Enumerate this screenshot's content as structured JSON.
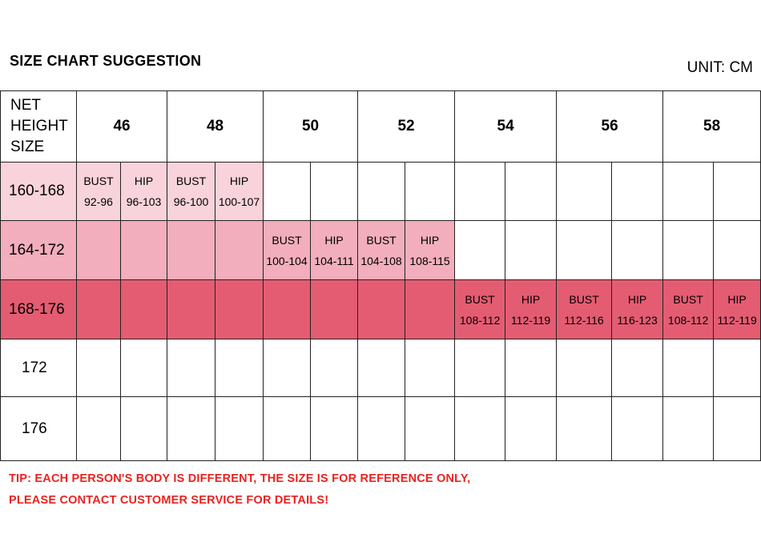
{
  "title": "SIZE CHART SUGGESTION",
  "unit": "UNIT: CM",
  "header": {
    "label_lines": [
      "NET",
      "HEIGHT",
      "SIZE"
    ],
    "sizes": [
      "46",
      "48",
      "50",
      "52",
      "54",
      "56",
      "58"
    ]
  },
  "colors": {
    "row1": "#f8d3db",
    "row2": "#f2aebc",
    "row3": "#e45c72",
    "tip": "#e8231f"
  },
  "rows": [
    {
      "label": "160-168",
      "cells": [
        {
          "k": "BUST",
          "v": "92-96"
        },
        {
          "k": "HIP",
          "v": "96-103"
        },
        {
          "k": "BUST",
          "v": "96-100"
        },
        {
          "k": "HIP",
          "v": "100-107"
        },
        {},
        {},
        {},
        {},
        {},
        {},
        {},
        {},
        {},
        {}
      ]
    },
    {
      "label": "164-172",
      "cells": [
        {},
        {},
        {},
        {},
        {
          "k": "BUST",
          "v": "100-104"
        },
        {
          "k": "HIP",
          "v": "104-111"
        },
        {
          "k": "BUST",
          "v": "104-108"
        },
        {
          "k": "HIP",
          "v": "108-115"
        },
        {},
        {},
        {},
        {},
        {},
        {}
      ]
    },
    {
      "label": "168-176",
      "cells": [
        {},
        {},
        {},
        {},
        {},
        {},
        {},
        {},
        {
          "k": "BUST",
          "v": "108-112"
        },
        {
          "k": "HIP",
          "v": "112-119"
        },
        {
          "k": "BUST",
          "v": "112-116"
        },
        {
          "k": "HIP",
          "v": "116-123"
        },
        {
          "k": "BUST",
          "v": "108-112"
        },
        {
          "k": "HIP",
          "v": "112-119"
        }
      ]
    },
    {
      "label": "172",
      "cells": [
        {},
        {},
        {},
        {},
        {},
        {},
        {},
        {},
        {},
        {},
        {},
        {},
        {},
        {}
      ]
    },
    {
      "label": "176",
      "cells": [
        {},
        {},
        {},
        {},
        {},
        {},
        {},
        {},
        {},
        {},
        {},
        {},
        {},
        {}
      ]
    }
  ],
  "tips": [
    "TIP: EACH PERSON'S BODY IS DIFFERENT, THE SIZE IS FOR REFERENCE ONLY,",
    "PLEASE CONTACT CUSTOMER SERVICE FOR DETAILS!"
  ]
}
